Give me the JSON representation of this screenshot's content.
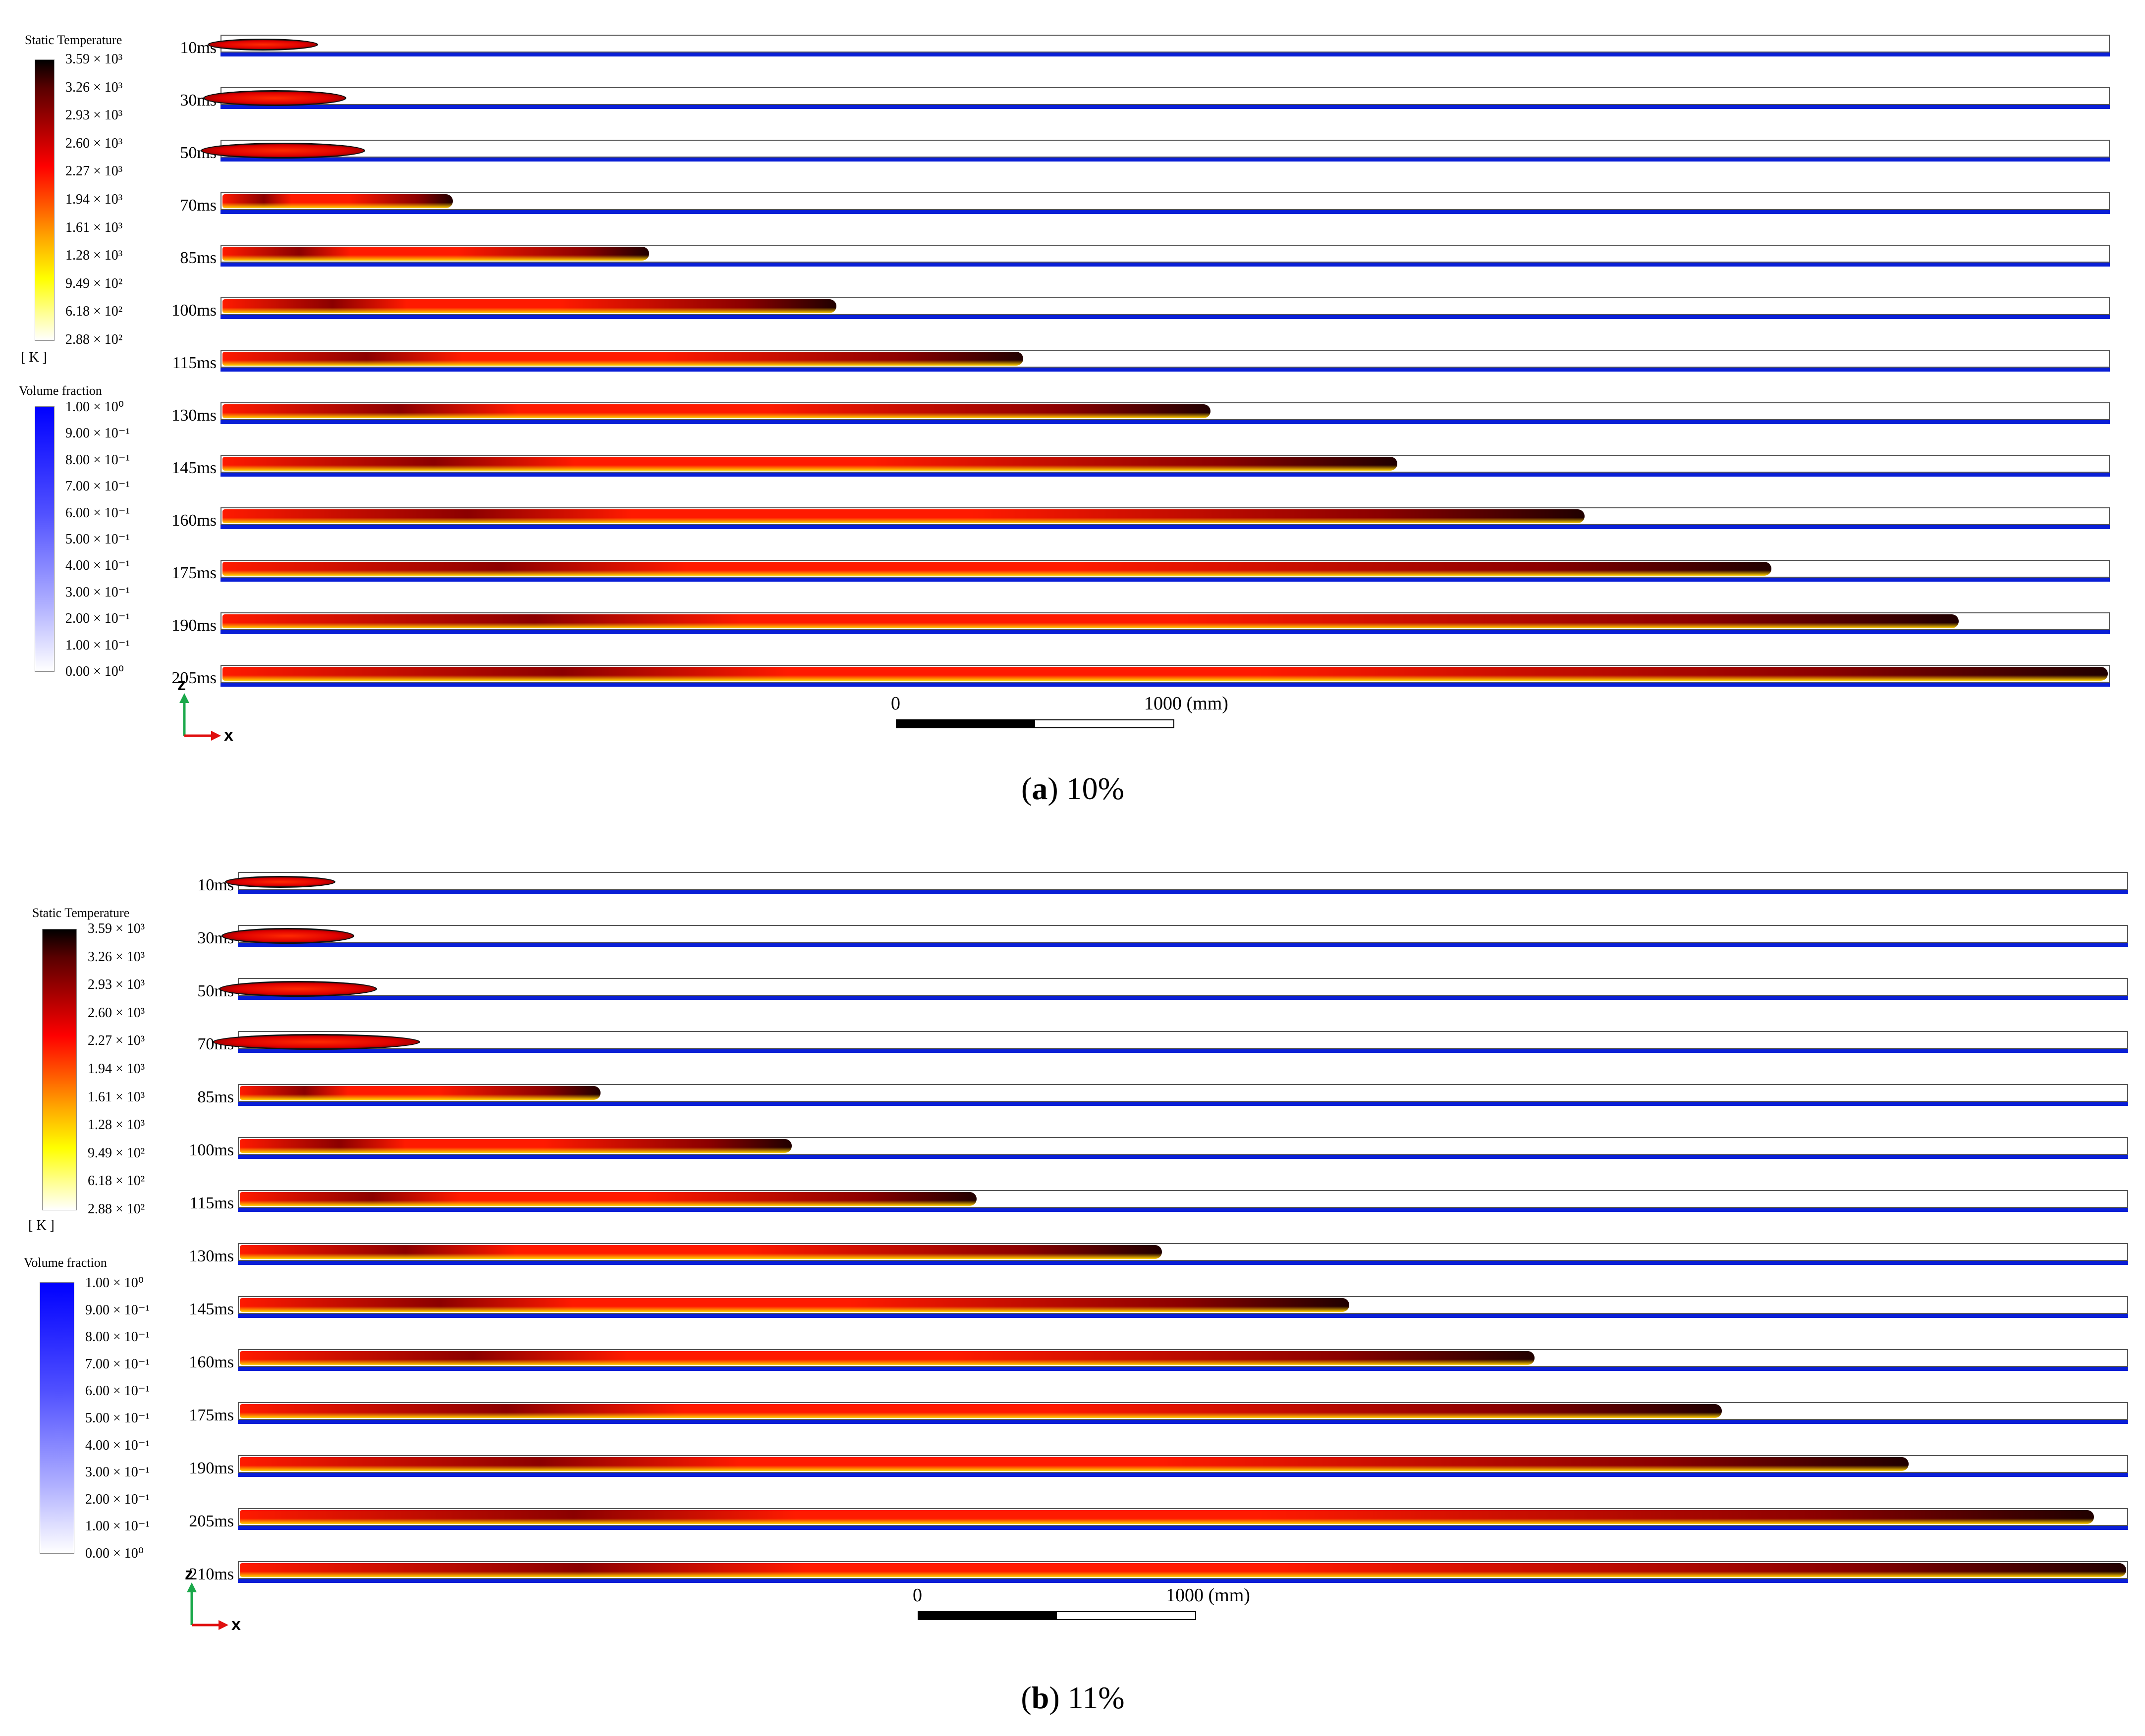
{
  "legend_temperature": {
    "title": "Static Temperature",
    "ticks": [
      "3.59 × 10³",
      "3.26 × 10³",
      "2.93 × 10³",
      "2.60 × 10³",
      "2.27 × 10³",
      "1.94 × 10³",
      "1.61 × 10³",
      "1.28 × 10³",
      "9.49 × 10²",
      "6.18 × 10²",
      "2.88 × 10²"
    ],
    "unit": "[ K ]"
  },
  "legend_volume_fraction": {
    "title": "Volume fraction",
    "ticks": [
      "1.00 × 10⁰",
      "9.00 × 10⁻¹",
      "8.00 × 10⁻¹",
      "7.00 × 10⁻¹",
      "6.00 × 10⁻¹",
      "5.00 × 10⁻¹",
      "4.00 × 10⁻¹",
      "3.00 × 10⁻¹",
      "2.00 × 10⁻¹",
      "1.00 × 10⁻¹",
      "0.00 × 10⁰"
    ]
  },
  "colors": {
    "wall": "#0a1fd6",
    "flame_hot": "#8b0000",
    "flame_mid": "#ff1a00",
    "flame_cool": "#ffd000"
  },
  "panels": [
    {
      "caption_letter": "a",
      "caption_value": "10%",
      "rows": [
        {
          "time": "10ms",
          "front": 0.05,
          "kind": "kernel"
        },
        {
          "time": "30ms",
          "front": 0.065,
          "kind": "kernel"
        },
        {
          "time": "50ms",
          "front": 0.075,
          "kind": "kernel"
        },
        {
          "time": "70ms",
          "front": 0.124,
          "kind": "flame"
        },
        {
          "time": "85ms",
          "front": 0.228,
          "kind": "flame"
        },
        {
          "time": "100ms",
          "front": 0.327,
          "kind": "flame"
        },
        {
          "time": "115ms",
          "front": 0.426,
          "kind": "flame"
        },
        {
          "time": "130ms",
          "front": 0.525,
          "kind": "flame"
        },
        {
          "time": "145ms",
          "front": 0.624,
          "kind": "flame"
        },
        {
          "time": "160ms",
          "front": 0.723,
          "kind": "flame"
        },
        {
          "time": "175ms",
          "front": 0.822,
          "kind": "flame"
        },
        {
          "time": "190ms",
          "front": 0.921,
          "kind": "flame"
        },
        {
          "time": "205ms",
          "front": 1.0,
          "kind": "flame"
        }
      ],
      "scale": {
        "start": "0",
        "end": "1000 (mm)"
      },
      "axes": {
        "z": "z",
        "x": "x"
      }
    },
    {
      "caption_letter": "b",
      "caption_value": "11%",
      "rows": [
        {
          "time": "10ms",
          "front": 0.05,
          "kind": "kernel"
        },
        {
          "time": "30ms",
          "front": 0.06,
          "kind": "kernel"
        },
        {
          "time": "50ms",
          "front": 0.072,
          "kind": "kernel"
        },
        {
          "time": "70ms",
          "front": 0.095,
          "kind": "kernel"
        },
        {
          "time": "85ms",
          "front": 0.193,
          "kind": "flame"
        },
        {
          "time": "100ms",
          "front": 0.294,
          "kind": "flame"
        },
        {
          "time": "115ms",
          "front": 0.392,
          "kind": "flame"
        },
        {
          "time": "130ms",
          "front": 0.49,
          "kind": "flame"
        },
        {
          "time": "145ms",
          "front": 0.589,
          "kind": "flame"
        },
        {
          "time": "160ms",
          "front": 0.687,
          "kind": "flame"
        },
        {
          "time": "175ms",
          "front": 0.786,
          "kind": "flame"
        },
        {
          "time": "190ms",
          "front": 0.885,
          "kind": "flame"
        },
        {
          "time": "205ms",
          "front": 0.983,
          "kind": "flame"
        },
        {
          "time": "210ms",
          "front": 1.0,
          "kind": "flame"
        }
      ],
      "scale": {
        "start": "0",
        "end": "1000 (mm)"
      },
      "axes": {
        "z": "z",
        "x": "x"
      }
    }
  ]
}
